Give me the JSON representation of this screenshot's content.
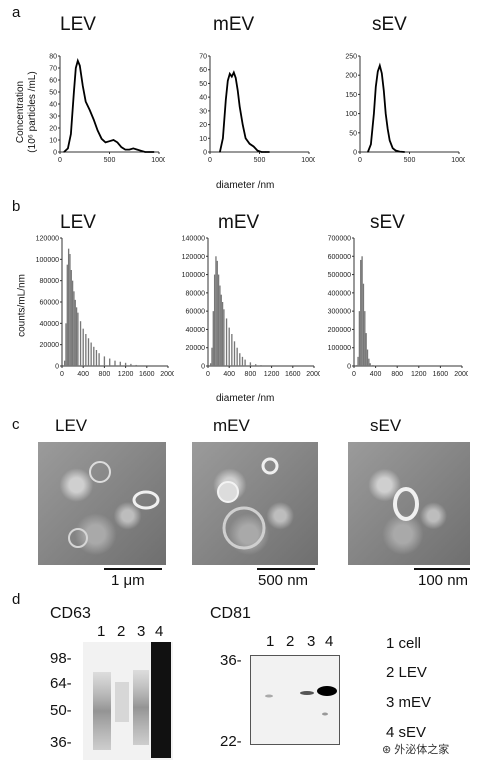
{
  "panels": {
    "a": "a",
    "b": "b",
    "c": "c",
    "d": "d"
  },
  "panel_a": {
    "titles": [
      "LEV",
      "mEV",
      "sEV"
    ],
    "ylabel_line1": "Concentration",
    "ylabel_line2": "(10⁶ particles /mL)",
    "xlabel": "diameter /nm"
  },
  "panel_b": {
    "titles": [
      "LEV",
      "mEV",
      "sEV"
    ],
    "ylabel": "counts/mL/nm",
    "xlabel": "diameter /nm"
  },
  "panel_c": {
    "titles": [
      "LEV",
      "mEV",
      "sEV"
    ],
    "scales": [
      "1 μm",
      "500 nm",
      "100 nm"
    ]
  },
  "panel_d": {
    "cd63_label": "CD63",
    "cd81_label": "CD81",
    "lanes": [
      "1",
      "2",
      "3",
      "4"
    ],
    "cd63_markers": [
      "98-",
      "64-",
      "50-",
      "36-"
    ],
    "cd81_markers": [
      "36-",
      "22-"
    ],
    "legend": [
      "1 cell",
      "2 LEV",
      "3 mEV",
      "4 sEV"
    ],
    "watermark": "外泌体之家"
  },
  "chart_data": [
    {
      "type": "line",
      "title": "LEV",
      "xlabel": "",
      "ylabel": "Concentration (10⁶ particles /mL)",
      "xlim": [
        0,
        1000
      ],
      "ylim": [
        0,
        80
      ],
      "xticks": [
        0,
        500,
        1000
      ],
      "yticks": [
        0,
        10,
        20,
        30,
        40,
        50,
        60,
        70,
        80
      ],
      "x": [
        40,
        80,
        110,
        140,
        160,
        180,
        200,
        230,
        260,
        300,
        340,
        380,
        420,
        460,
        500,
        540,
        580,
        620,
        660,
        700,
        740,
        780,
        820,
        860,
        900,
        950
      ],
      "y": [
        0,
        3,
        15,
        50,
        70,
        76,
        72,
        55,
        42,
        35,
        27,
        18,
        11,
        8,
        9,
        10,
        8,
        4,
        2,
        2,
        3,
        2,
        1,
        0,
        0,
        0
      ]
    },
    {
      "type": "line",
      "title": "mEV",
      "xlabel": "",
      "ylabel": "",
      "xlim": [
        0,
        1000
      ],
      "ylim": [
        0,
        70
      ],
      "xticks": [
        0,
        500,
        1000
      ],
      "yticks": [
        0,
        10,
        20,
        30,
        40,
        50,
        60,
        70
      ],
      "x": [
        100,
        130,
        160,
        180,
        200,
        220,
        240,
        260,
        280,
        300,
        330,
        360,
        400,
        440,
        480,
        520,
        560,
        600
      ],
      "y": [
        0,
        10,
        38,
        52,
        57,
        55,
        58,
        54,
        45,
        33,
        20,
        10,
        6,
        4,
        1,
        0,
        0,
        0
      ]
    },
    {
      "type": "line",
      "title": "sEV",
      "xlabel": "",
      "ylabel": "",
      "xlim": [
        0,
        1000
      ],
      "ylim": [
        0,
        250
      ],
      "xticks": [
        0,
        500,
        1000
      ],
      "yticks": [
        0,
        50,
        100,
        150,
        200,
        250
      ],
      "x": [
        80,
        110,
        140,
        160,
        180,
        200,
        220,
        240,
        260,
        280,
        300,
        330,
        360,
        400,
        450
      ],
      "y": [
        0,
        20,
        100,
        170,
        210,
        225,
        205,
        160,
        100,
        60,
        30,
        10,
        4,
        1,
        0
      ]
    },
    {
      "type": "bar",
      "title": "LEV",
      "ylabel": "counts/mL/nm",
      "xlim": [
        0,
        2000
      ],
      "ylim": [
        0,
        120000
      ],
      "xticks": [
        0,
        400,
        800,
        1200,
        1600,
        2000
      ],
      "yticks": [
        0,
        20000,
        40000,
        60000,
        80000,
        100000,
        120000
      ],
      "x": [
        50,
        75,
        100,
        125,
        150,
        175,
        200,
        225,
        250,
        275,
        300,
        350,
        400,
        450,
        500,
        550,
        600,
        650,
        700,
        800,
        900,
        1000,
        1100,
        1200,
        1300,
        1400
      ],
      "values": [
        5000,
        40000,
        95000,
        110000,
        105000,
        90000,
        80000,
        70000,
        62000,
        55000,
        50000,
        42000,
        35000,
        30000,
        26000,
        22000,
        18000,
        15000,
        12000,
        9000,
        7000,
        5000,
        4000,
        3000,
        2000,
        1000
      ]
    },
    {
      "type": "bar",
      "title": "mEV",
      "ylabel": "",
      "xlim": [
        0,
        2000
      ],
      "ylim": [
        0,
        140000
      ],
      "xticks": [
        0,
        400,
        800,
        1200,
        1600,
        2000
      ],
      "yticks": [
        0,
        20000,
        40000,
        60000,
        80000,
        100000,
        120000,
        140000
      ],
      "x": [
        50,
        75,
        100,
        125,
        150,
        175,
        200,
        225,
        250,
        275,
        300,
        350,
        400,
        450,
        500,
        550,
        600,
        650,
        700,
        800,
        900,
        1000
      ],
      "values": [
        3000,
        20000,
        60000,
        100000,
        120000,
        115000,
        100000,
        88000,
        78000,
        70000,
        62000,
        52000,
        42000,
        35000,
        27000,
        20000,
        14000,
        10000,
        7000,
        4000,
        2000,
        1000
      ]
    },
    {
      "type": "bar",
      "title": "sEV",
      "ylabel": "",
      "xlim": [
        0,
        2000
      ],
      "ylim": [
        0,
        700000
      ],
      "xticks": [
        0,
        400,
        800,
        1200,
        1600,
        2000
      ],
      "yticks": [
        0,
        100000,
        200000,
        300000,
        400000,
        500000,
        600000,
        700000
      ],
      "x": [
        50,
        75,
        100,
        125,
        150,
        175,
        200,
        225,
        250,
        275,
        300,
        350,
        400
      ],
      "values": [
        5000,
        50000,
        300000,
        580000,
        600000,
        450000,
        300000,
        180000,
        90000,
        40000,
        15000,
        5000,
        1000
      ]
    }
  ]
}
